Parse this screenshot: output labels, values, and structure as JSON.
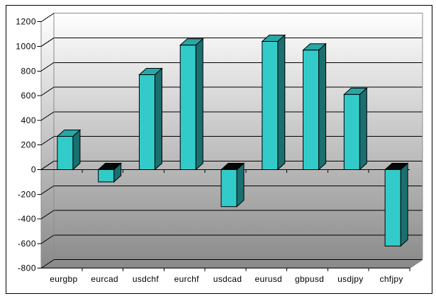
{
  "window": {
    "background_color": "#ffffff",
    "frame_border_color": "#000000"
  },
  "chart_data": {
    "type": "bar",
    "style": "3d-column",
    "title": "",
    "xlabel": "",
    "ylabel": "",
    "categories": [
      "eurgbp",
      "eurcad",
      "usdchf",
      "eurchf",
      "usdcad",
      "eurusd",
      "gbpusd",
      "usdjpy",
      "chfjpy"
    ],
    "values": [
      270,
      -100,
      770,
      1010,
      -300,
      1040,
      970,
      610,
      -620
    ],
    "series_name": "",
    "ylim": [
      -800,
      1200
    ],
    "y_tick_step": 200,
    "y_tick_labels": [
      "1200",
      "1000",
      "800",
      "600",
      "400",
      "200",
      "0",
      "-200",
      "-400",
      "-600",
      "-800"
    ],
    "y_tick_values": [
      1200,
      1000,
      800,
      600,
      400,
      200,
      0,
      -200,
      -400,
      -600,
      -800
    ],
    "grid": true,
    "legend": false,
    "colors": {
      "bar_front": "#33cbc9",
      "bar_top": "#28a7a5",
      "bar_side": "#1a6f6f",
      "bar_top_negative": "#070707",
      "bar_outline": "#000000",
      "gridline": "#000000",
      "wall_outline": "#8c8c8c",
      "wall_gradient_top": "#ffffff",
      "wall_gradient_bottom": "#898989",
      "axis_text": "#000000"
    }
  }
}
